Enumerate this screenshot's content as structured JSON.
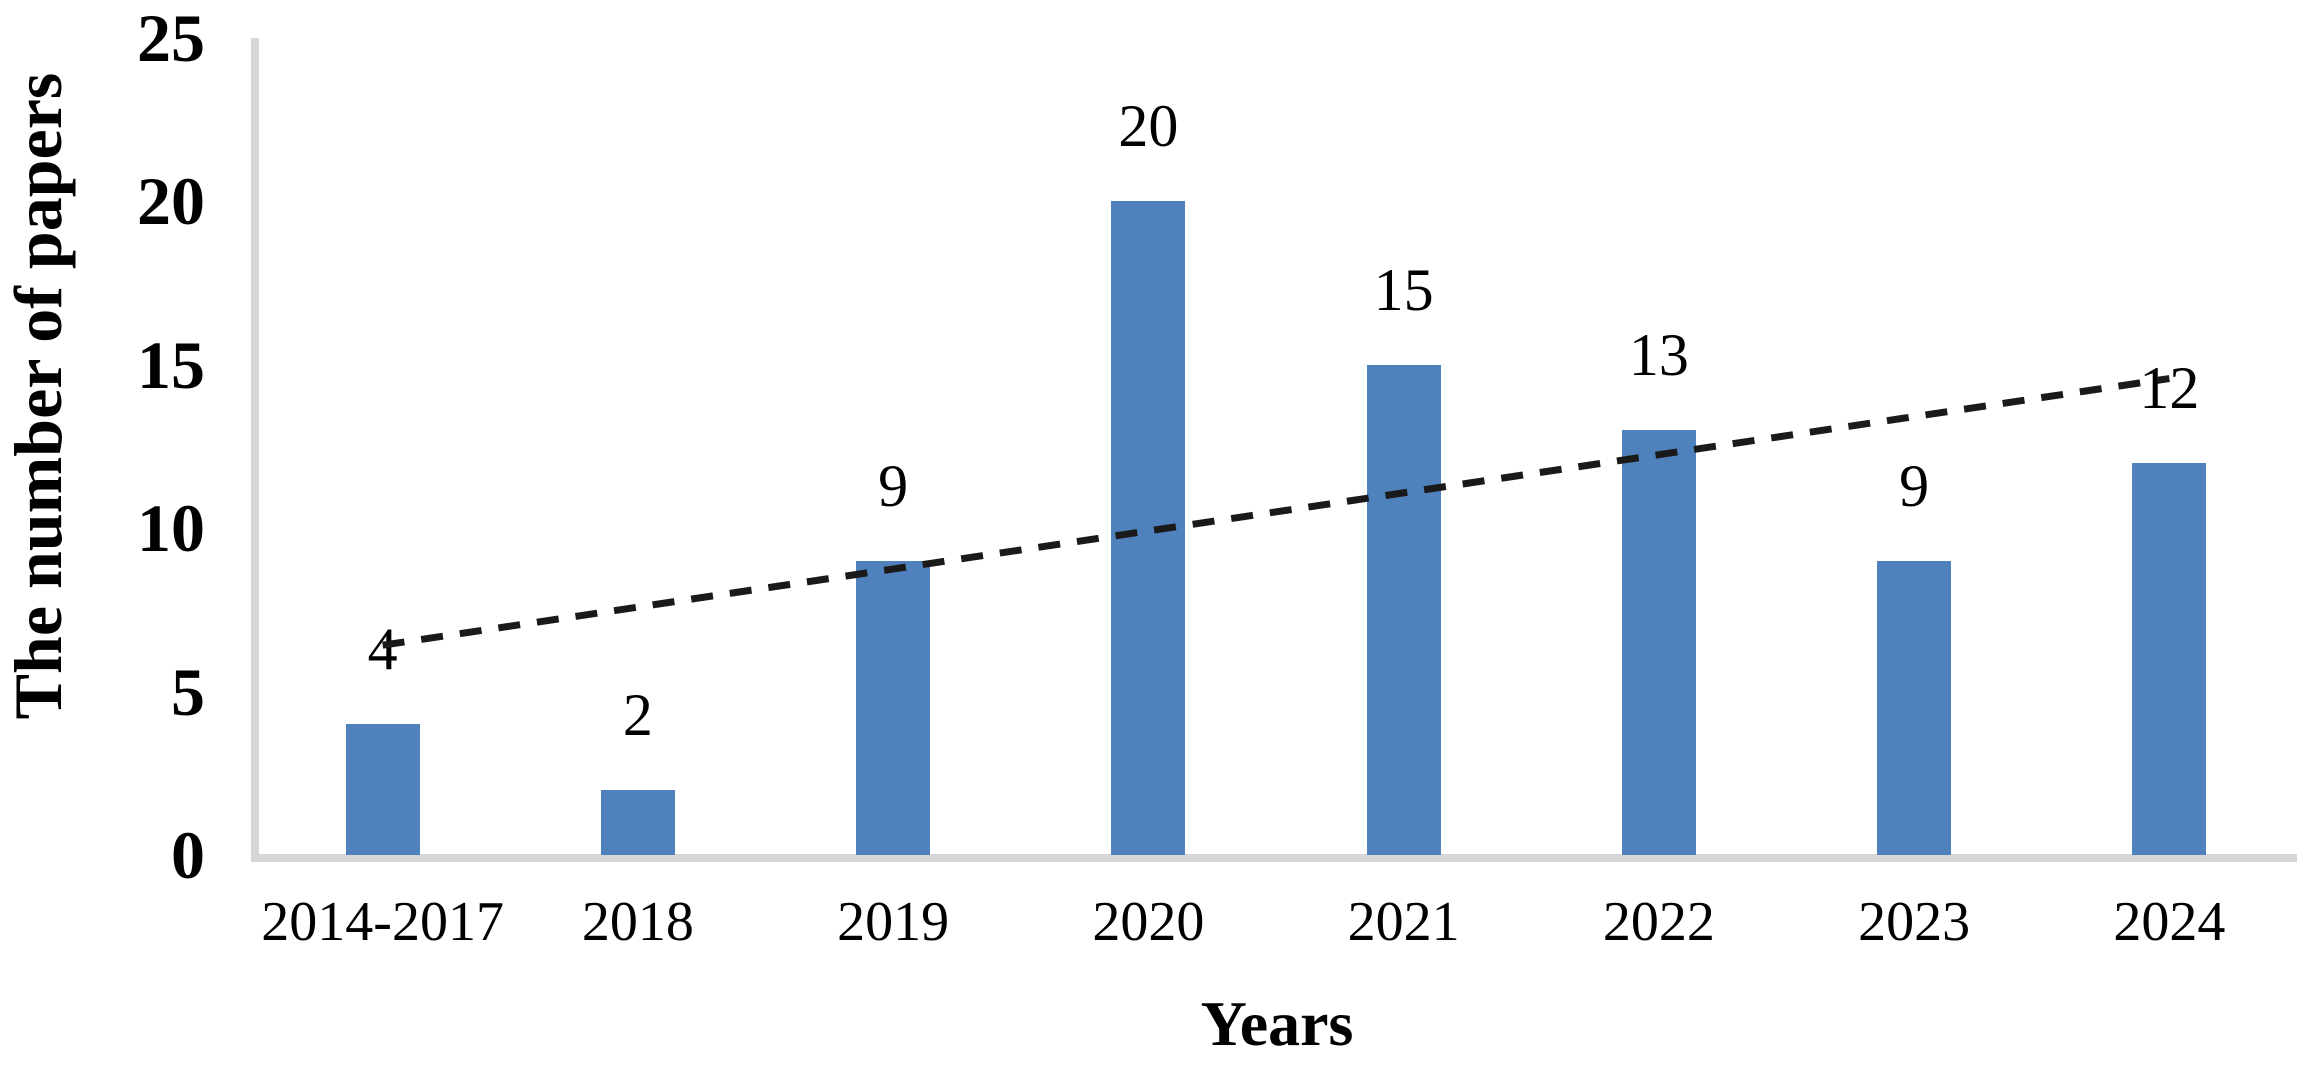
{
  "chart_data": {
    "type": "bar",
    "title": "",
    "categories": [
      "2014-2017",
      "2018",
      "2019",
      "2020",
      "2021",
      "2022",
      "2023",
      "2024"
    ],
    "values": [
      4,
      2,
      9,
      20,
      15,
      13,
      9,
      12
    ],
    "data_labels": [
      "4",
      "2",
      "9",
      "20",
      "15",
      "13",
      "9",
      "12"
    ],
    "xlabel": "Years",
    "ylabel": "The number of papers",
    "ylim": [
      0,
      25
    ],
    "yticks": [
      0,
      5,
      10,
      15,
      20,
      25
    ],
    "grid": "off",
    "legend": "none",
    "bar_color": "#4F81BD",
    "axis_line_color": "#D6D6D6",
    "text_color": "#000000",
    "trendline": {
      "type": "linear",
      "style": "dashed",
      "color": "#1A1A1A",
      "start_value": 6.42,
      "end_value": 14.58
    }
  }
}
